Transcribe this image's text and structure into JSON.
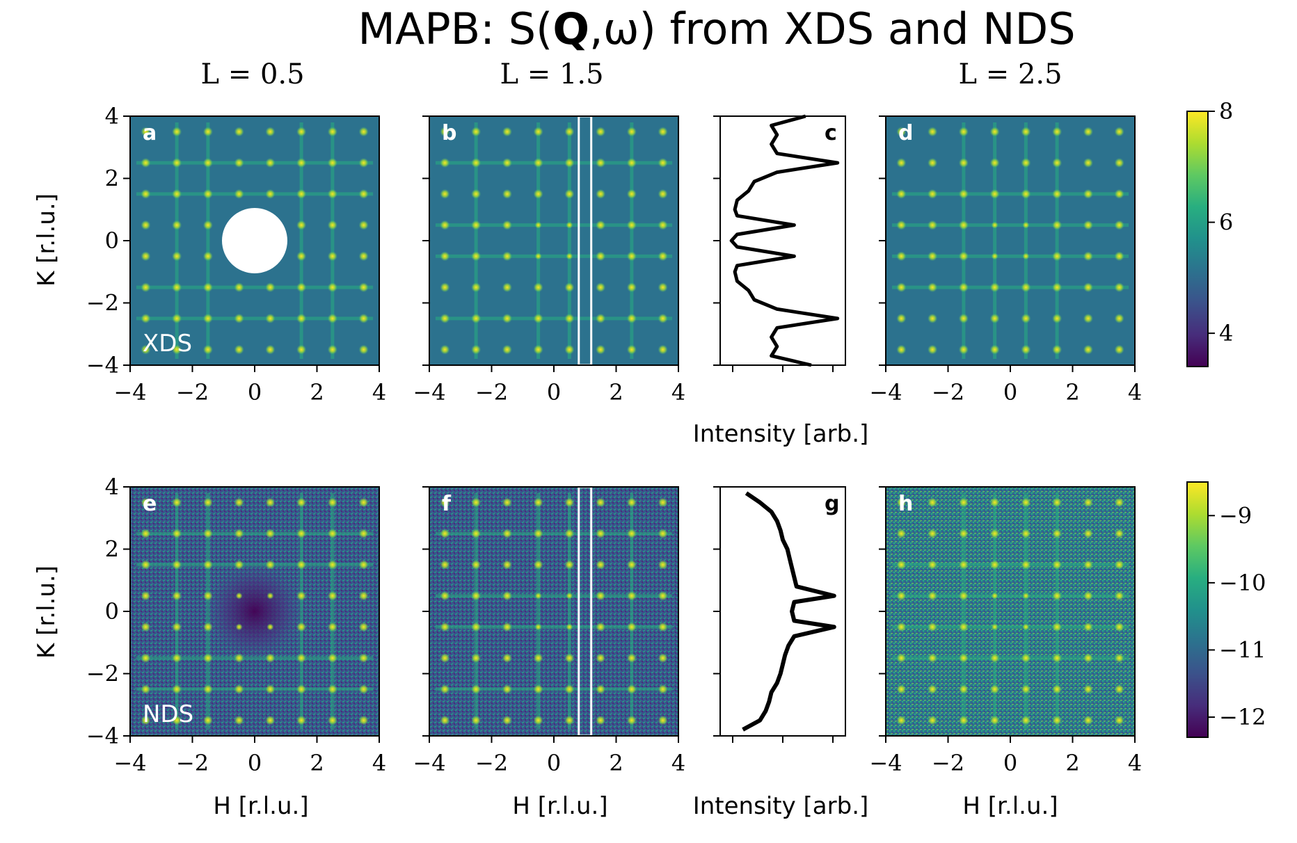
{
  "title_prefix": "MAPB: S(",
  "title_bold": "Q",
  "title_suffix": ",ω) from XDS and NDS",
  "column_titles": [
    "L = 0.5",
    "L = 1.5",
    "L = 2.5"
  ],
  "row_labels": [
    "XDS",
    "NDS"
  ],
  "colors": {
    "background_xds": "#2c728e",
    "background_nds": "#3b528b",
    "peak": "#fde725",
    "line": "#000000",
    "cut_box": "#ffffff",
    "mask": "#ffffff"
  },
  "chart_data": [
    {
      "panel": "a",
      "type": "heatmap",
      "row": "XDS",
      "L": 0.5,
      "xlabel": "",
      "ylabel": "K [r.l.u.]",
      "xlim": [
        -4,
        4
      ],
      "ylim": [
        -4,
        4
      ],
      "xticks": [
        "−4",
        "−2",
        "0",
        "2",
        "4"
      ],
      "yticks": [
        "−4",
        "−2",
        "0",
        "2",
        "4"
      ],
      "peaks_at": "half-integer (H, K)",
      "masked_center_radius": 1.05
    },
    {
      "panel": "b",
      "type": "heatmap",
      "row": "XDS",
      "L": 1.5,
      "xlim": [
        -4,
        4
      ],
      "ylim": [
        -4,
        4
      ],
      "xticks": [
        "−4",
        "−2",
        "0",
        "2",
        "4"
      ],
      "peaks_at": "half-integer (H, K)",
      "cut_H_range": [
        0.8,
        1.2
      ]
    },
    {
      "panel": "c",
      "type": "line",
      "row": "XDS",
      "xlabel": "Intensity [arb.]",
      "ylim": [
        -4,
        4
      ],
      "y": [
        -4.0,
        -3.7,
        -3.4,
        -3.1,
        -2.8,
        -2.5,
        -2.2,
        -1.9,
        -1.6,
        -1.3,
        -1.0,
        -0.8,
        -0.5,
        -0.2,
        0.0,
        0.2,
        0.5,
        0.8,
        1.0,
        1.3,
        1.6,
        1.9,
        2.2,
        2.5,
        2.8,
        3.1,
        3.4,
        3.7,
        4.0
      ],
      "x": [
        0.75,
        0.4,
        0.45,
        0.4,
        0.45,
        0.98,
        0.45,
        0.25,
        0.2,
        0.1,
        0.08,
        0.1,
        0.6,
        0.1,
        0.05,
        0.1,
        0.6,
        0.1,
        0.08,
        0.1,
        0.2,
        0.25,
        0.45,
        0.98,
        0.45,
        0.4,
        0.45,
        0.4,
        0.7
      ]
    },
    {
      "panel": "d",
      "type": "heatmap",
      "row": "XDS",
      "L": 2.5,
      "xlim": [
        -4,
        4
      ],
      "ylim": [
        -4,
        4
      ],
      "xticks": [
        "−4",
        "−2",
        "0",
        "2",
        "4"
      ],
      "peaks_at": "half-integer (H, K)"
    },
    {
      "panel": "e",
      "type": "heatmap",
      "row": "NDS",
      "L": 0.5,
      "xlabel": "H [r.l.u.]",
      "ylabel": "K [r.l.u.]",
      "xlim": [
        -4,
        4
      ],
      "ylim": [
        -4,
        4
      ],
      "xticks": [
        "−4",
        "−2",
        "0",
        "2",
        "4"
      ],
      "yticks": [
        "−4",
        "−2",
        "0",
        "2",
        "4"
      ],
      "peaks_at": "half-integer (H, K)"
    },
    {
      "panel": "f",
      "type": "heatmap",
      "row": "NDS",
      "L": 1.5,
      "xlabel": "H [r.l.u.]",
      "xlim": [
        -4,
        4
      ],
      "ylim": [
        -4,
        4
      ],
      "xticks": [
        "−4",
        "−2",
        "0",
        "2",
        "4"
      ],
      "peaks_at": "half-integer (H, K)",
      "cut_H_range": [
        0.8,
        1.2
      ]
    },
    {
      "panel": "g",
      "type": "line",
      "row": "NDS",
      "xlabel": "Intensity [arb.]",
      "ylim": [
        -4,
        4
      ],
      "y": [
        -3.8,
        -3.5,
        -3.2,
        -2.9,
        -2.6,
        -2.3,
        -2.0,
        -1.7,
        -1.4,
        -1.1,
        -0.8,
        -0.5,
        -0.3,
        0.0,
        0.3,
        0.5,
        0.8,
        1.1,
        1.4,
        1.7,
        2.0,
        2.3,
        2.6,
        2.9,
        3.2,
        3.5,
        3.8
      ],
      "x": [
        0.15,
        0.3,
        0.35,
        0.38,
        0.4,
        0.45,
        0.48,
        0.5,
        0.52,
        0.55,
        0.6,
        0.95,
        0.6,
        0.58,
        0.6,
        0.95,
        0.62,
        0.6,
        0.58,
        0.56,
        0.54,
        0.5,
        0.48,
        0.45,
        0.4,
        0.3,
        0.18
      ]
    },
    {
      "panel": "h",
      "type": "heatmap",
      "row": "NDS",
      "L": 2.5,
      "xlabel": "H [r.l.u.]",
      "xlim": [
        -4,
        4
      ],
      "ylim": [
        -4,
        4
      ],
      "xticks": [
        "−4",
        "−2",
        "0",
        "2",
        "4"
      ],
      "peaks_at": "half-integer (H, K)"
    }
  ],
  "colorbars": [
    {
      "row": "XDS",
      "range": [
        3.4,
        8.0
      ],
      "ticks": [
        "4",
        "6",
        "8"
      ]
    },
    {
      "row": "NDS",
      "range": [
        -12.3,
        -8.5
      ],
      "ticks": [
        "−12",
        "−11",
        "−10",
        "−9"
      ]
    }
  ]
}
